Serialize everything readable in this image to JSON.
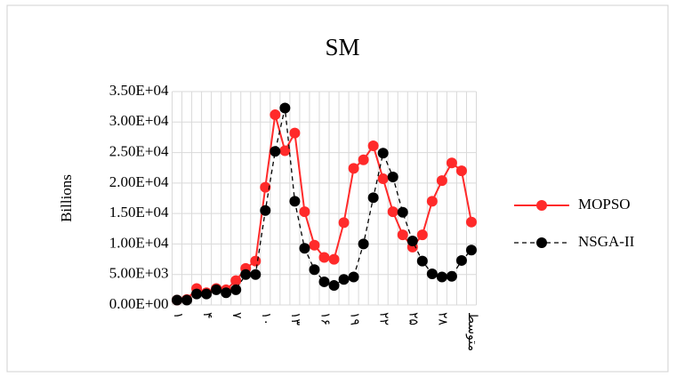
{
  "chart_data": {
    "type": "line",
    "title": "SM",
    "y_label": "Billions",
    "categories": [
      "۱",
      null,
      null,
      "۴",
      null,
      null,
      "۷",
      null,
      null,
      "۱۰",
      null,
      null,
      "۱۳",
      null,
      null,
      "۱۶",
      null,
      null,
      "۱۹",
      null,
      null,
      "۲۲",
      null,
      null,
      "۲۵",
      null,
      null,
      "۲۸",
      null,
      null,
      "متوسط"
    ],
    "series": [
      {
        "name": "MOPSO",
        "color": "#ff2a2a",
        "linestyle": "solid",
        "values": [
          800,
          900,
          2700,
          2000,
          2700,
          2500,
          4000,
          6000,
          7200,
          19300,
          31200,
          25300,
          28200,
          15300,
          9800,
          7800,
          7500,
          13500,
          22400,
          23800,
          26100,
          20700,
          15300,
          11500,
          9500,
          11500,
          17000,
          20400,
          23300,
          22000,
          13600
        ]
      },
      {
        "name": "NSGA-II",
        "color": "#000000",
        "linestyle": "dashed",
        "values": [
          800,
          800,
          1800,
          1800,
          2500,
          2000,
          2500,
          5000,
          5000,
          15500,
          25200,
          32300,
          17000,
          9300,
          5800,
          3800,
          3200,
          4200,
          4600,
          10000,
          17600,
          24900,
          21000,
          15200,
          10500,
          7200,
          5100,
          4600,
          4700,
          7300,
          9000
        ]
      }
    ],
    "ylim": [
      0,
      35000
    ],
    "yticks": [
      {
        "value": 0,
        "label": "0.00E+00"
      },
      {
        "value": 5000,
        "label": "5.00E+03"
      },
      {
        "value": 10000,
        "label": "1.00E+04"
      },
      {
        "value": 15000,
        "label": "1.50E+04"
      },
      {
        "value": 20000,
        "label": "2.00E+04"
      },
      {
        "value": 25000,
        "label": "2.50E+04"
      },
      {
        "value": 30000,
        "label": "3.00E+04"
      },
      {
        "value": 35000,
        "label": "3.50E+04"
      }
    ],
    "grid": true,
    "legend": "right"
  }
}
